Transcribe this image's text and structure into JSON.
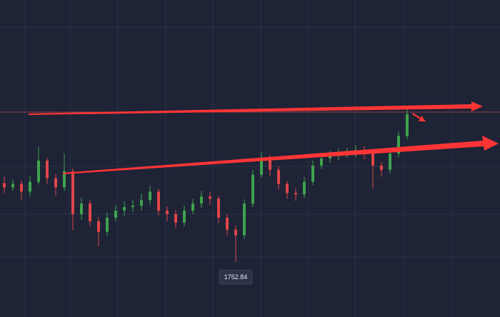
{
  "chart_data": {
    "type": "candlestick",
    "ylim": [
      1745,
      1790
    ],
    "up_color": "#3fa34d",
    "down_color": "#e0454a",
    "open": [
      1764.0,
      1763.4,
      1763.9,
      1762.8,
      1764.2,
      1767.2,
      1764.7,
      1763.4,
      1765.7,
      1759.6,
      1761.1,
      1758.6,
      1757.1,
      1759.1,
      1760.1,
      1760.6,
      1760.8,
      1761.6,
      1762.8,
      1760.1,
      1759.6,
      1758.4,
      1760.1,
      1761.1,
      1762.1,
      1761.8,
      1759.1,
      1757.4,
      1756.6,
      1761.1,
      1765.2,
      1767.5,
      1765.9,
      1763.9,
      1762.6,
      1762.4,
      1764.2,
      1766.5,
      1767.5,
      1767.9,
      1768.2,
      1768.3,
      1768.7,
      1768.2,
      1766.5,
      1765.9,
      1768.2,
      1770.7
    ],
    "high": [
      1764.9,
      1764.5,
      1764.4,
      1765.0,
      1769.2,
      1767.6,
      1765.3,
      1768.2,
      1766.1,
      1761.9,
      1761.6,
      1759.2,
      1759.8,
      1760.9,
      1761.4,
      1761.7,
      1762.5,
      1763.6,
      1763.2,
      1760.7,
      1760.2,
      1760.8,
      1761.8,
      1762.9,
      1762.8,
      1762.2,
      1759.6,
      1758.0,
      1761.7,
      1765.9,
      1768.4,
      1768.0,
      1766.4,
      1764.3,
      1763.3,
      1764.9,
      1767.2,
      1768.1,
      1768.6,
      1768.9,
      1769.0,
      1769.4,
      1769.3,
      1768.6,
      1767.0,
      1768.8,
      1771.3,
      1774.8
    ],
    "low": [
      1762.6,
      1762.9,
      1761.7,
      1762.1,
      1763.8,
      1763.9,
      1762.2,
      1762.9,
      1757.3,
      1758.8,
      1757.9,
      1755.0,
      1756.5,
      1758.6,
      1759.3,
      1759.9,
      1760.1,
      1761.0,
      1759.4,
      1758.6,
      1757.6,
      1757.9,
      1759.6,
      1760.5,
      1760.9,
      1758.3,
      1756.6,
      1752.84,
      1756.1,
      1760.6,
      1764.8,
      1765.0,
      1763.1,
      1761.8,
      1761.5,
      1761.9,
      1763.7,
      1766.0,
      1766.9,
      1767.3,
      1767.6,
      1767.7,
      1767.4,
      1763.2,
      1764.9,
      1765.4,
      1767.7,
      1770.2
    ],
    "close": [
      1763.4,
      1763.9,
      1762.8,
      1764.2,
      1767.2,
      1764.7,
      1763.4,
      1765.7,
      1759.6,
      1761.1,
      1758.6,
      1757.1,
      1759.1,
      1760.1,
      1760.6,
      1760.8,
      1761.6,
      1762.8,
      1760.1,
      1759.6,
      1758.4,
      1760.1,
      1761.1,
      1762.1,
      1761.8,
      1759.1,
      1757.4,
      1756.6,
      1761.1,
      1765.2,
      1767.5,
      1765.9,
      1763.9,
      1762.6,
      1762.4,
      1764.2,
      1766.5,
      1767.5,
      1767.9,
      1768.2,
      1768.3,
      1768.7,
      1768.2,
      1766.5,
      1765.9,
      1768.2,
      1770.7,
      1773.8
    ]
  }
}
